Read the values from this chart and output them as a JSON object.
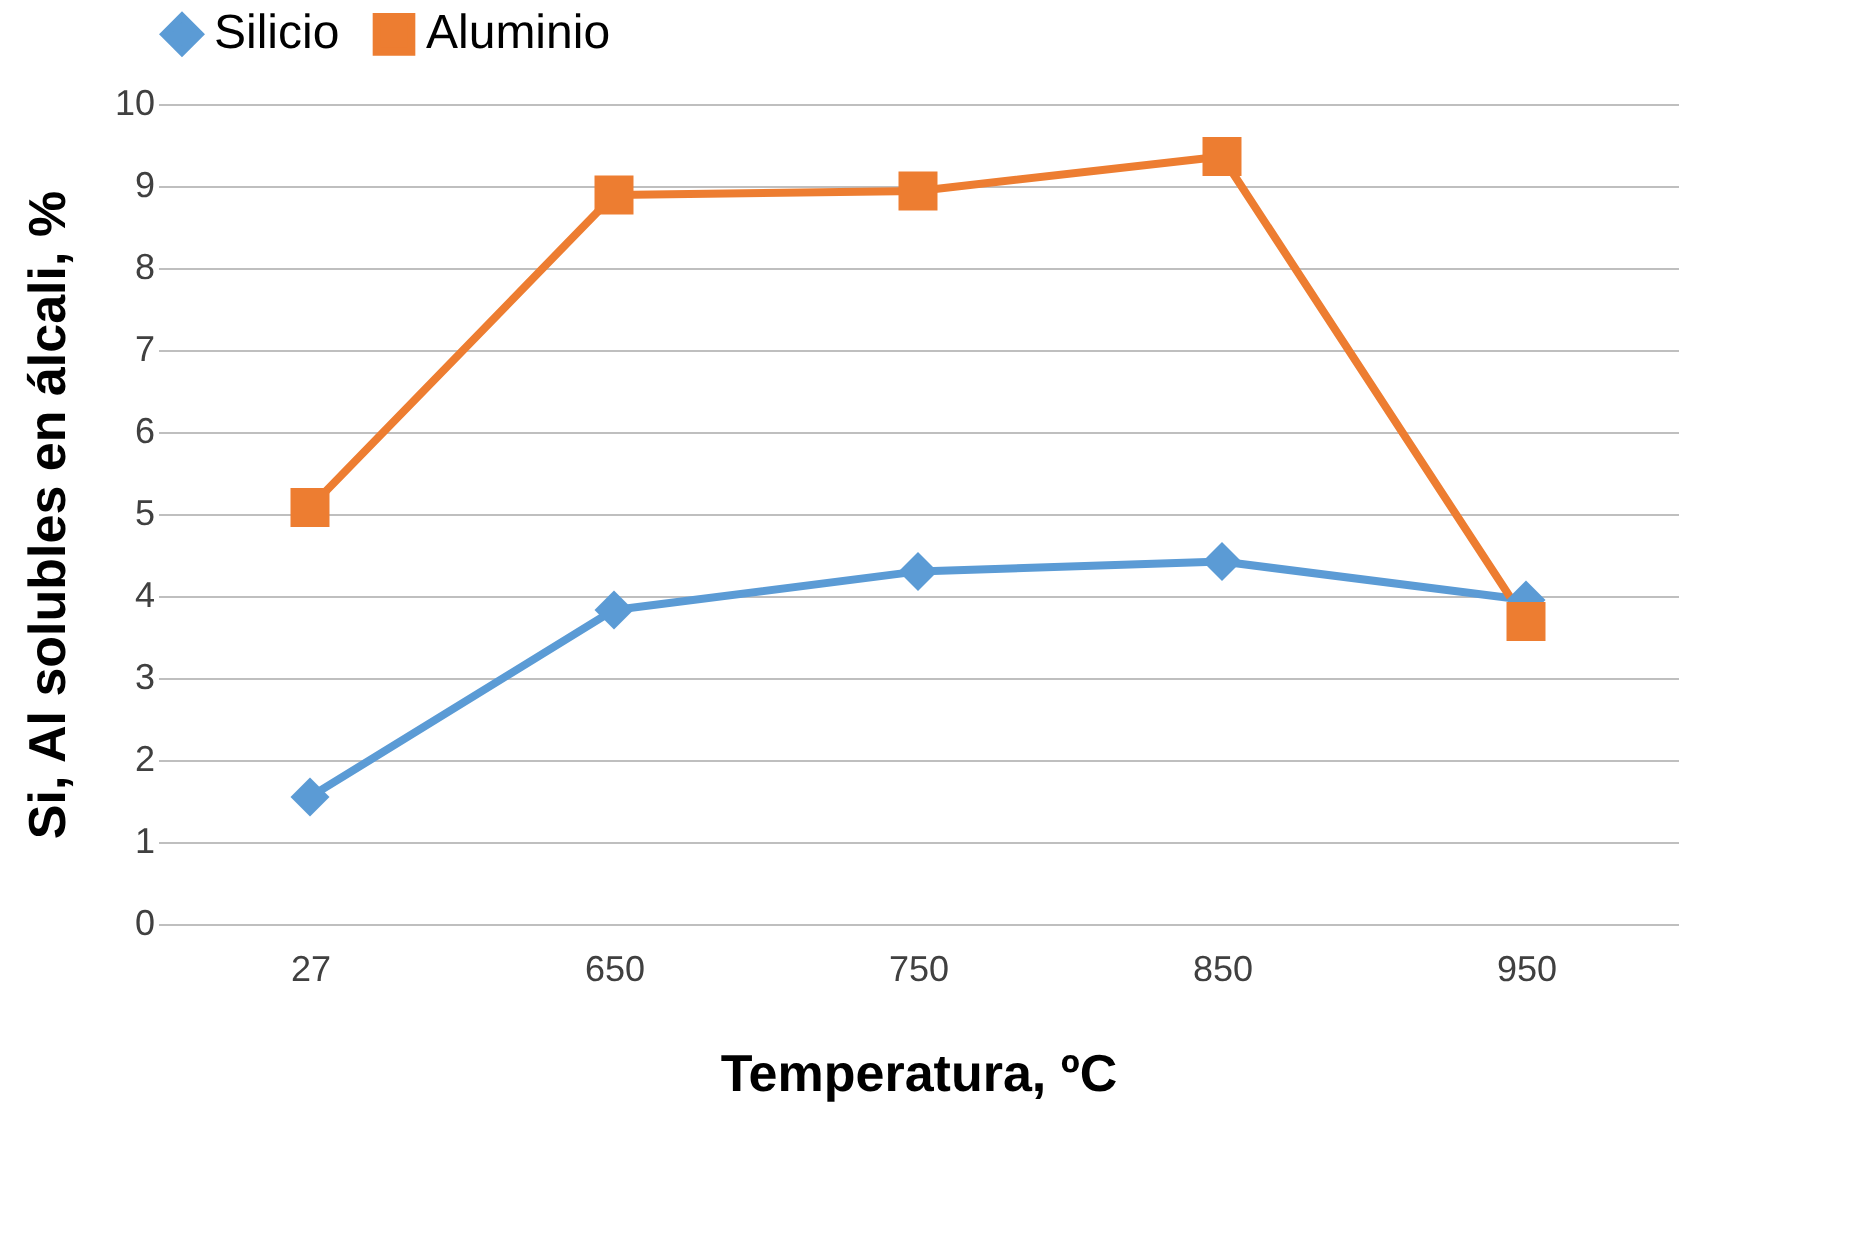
{
  "chart_data": {
    "type": "line",
    "xlabel": "Temperatura, ºC",
    "ylabel": "Si, Al solubles en álcali, %",
    "categories": [
      "27",
      "650",
      "750",
      "850",
      "950"
    ],
    "series": [
      {
        "name": "Silicio",
        "color": "#5b9bd5",
        "marker": "diamond",
        "values": [
          1.55,
          3.83,
          4.3,
          4.42,
          3.95
        ]
      },
      {
        "name": "Aluminio",
        "color": "#ed7d31",
        "marker": "square",
        "values": [
          5.08,
          8.89,
          8.94,
          9.36,
          3.69
        ]
      }
    ],
    "ylim": [
      0,
      10
    ],
    "yticks": [
      0,
      1,
      2,
      3,
      4,
      5,
      6,
      7,
      8,
      9,
      10
    ],
    "grid": "y",
    "legend": "top",
    "line_style": "solid"
  }
}
